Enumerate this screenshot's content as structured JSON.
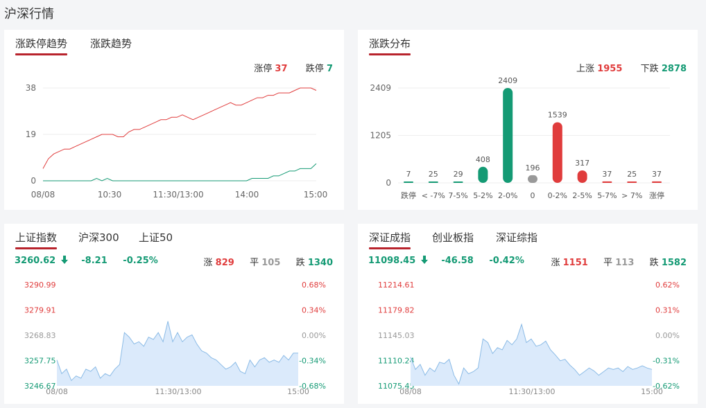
{
  "page_title": "沪深行情",
  "colors": {
    "up": "#e03c3c",
    "down": "#149a74",
    "flat": "#999999",
    "accent": "#b8232c",
    "area_fill": "#dbeafb",
    "area_line": "#8bbbe6"
  },
  "limit_panel": {
    "tabs": [
      "涨跌停趋势",
      "涨跌趋势"
    ],
    "limit_up_label": "涨停",
    "limit_up_value": "37",
    "limit_down_label": "跌停",
    "limit_down_value": "7"
  },
  "dist_panel": {
    "tabs": [
      "涨跌分布"
    ],
    "rise_label": "上涨",
    "rise_value": "1955",
    "fall_label": "下跌",
    "fall_value": "2878"
  },
  "sh_panel": {
    "tabs": [
      "上证指数",
      "沪深300",
      "上证50"
    ],
    "price": "3260.62",
    "arrow_icon": "arrow-down-icon",
    "change": "-8.21",
    "change_pct": "-0.25%",
    "up_label": "涨",
    "up_value": "829",
    "flat_label": "平",
    "flat_value": "105",
    "down_label": "跌",
    "down_value": "1340"
  },
  "sz_panel": {
    "tabs": [
      "深证成指",
      "创业板指",
      "深证综指"
    ],
    "price": "11098.45",
    "arrow_icon": "arrow-down-icon",
    "change": "-46.58",
    "change_pct": "-0.42%",
    "up_label": "涨",
    "up_value": "1151",
    "flat_label": "平",
    "flat_value": "113",
    "down_label": "跌",
    "down_value": "1582"
  },
  "chart_data": [
    {
      "type": "line",
      "x_ticks": [
        "08/08",
        "10:30",
        "11:30/13:00",
        "14:00",
        "15:00"
      ],
      "y_ticks": [
        "0",
        "19",
        "38"
      ],
      "ylim": [
        0,
        38
      ],
      "series": [
        {
          "name": "涨停",
          "color": "#e03c3c",
          "values": [
            5,
            9,
            11,
            12,
            13,
            13,
            14,
            15,
            16,
            17,
            18,
            19,
            19,
            19,
            18,
            18,
            20,
            21,
            21,
            22,
            23,
            24,
            25,
            25,
            26,
            26,
            27,
            26,
            25,
            26,
            27,
            28,
            29,
            30,
            31,
            32,
            31,
            31,
            32,
            33,
            34,
            34,
            35,
            35,
            36,
            36,
            36,
            37,
            38,
            38,
            38,
            37
          ]
        },
        {
          "name": "跌停",
          "color": "#149a74",
          "values": [
            0,
            0,
            0,
            0,
            0,
            0,
            0,
            0,
            0,
            0,
            1,
            0,
            1,
            0,
            0,
            0,
            0,
            0,
            0,
            0,
            0,
            0,
            0,
            0,
            0,
            0,
            0,
            0,
            0,
            0,
            0,
            0,
            0,
            0,
            0,
            0,
            0,
            0,
            0,
            1,
            1,
            1,
            1,
            2,
            2,
            3,
            4,
            4,
            5,
            5,
            5,
            7
          ]
        }
      ]
    },
    {
      "type": "bar",
      "categories": [
        "跌停",
        "< -7%",
        "7-5%",
        "5-2%",
        "2-0%",
        "0",
        "0-2%",
        "2-5%",
        "5-7%",
        "> 7%",
        "涨停"
      ],
      "values": [
        7,
        25,
        29,
        408,
        2409,
        196,
        1539,
        317,
        37,
        25,
        37
      ],
      "bar_colors": [
        "#149a74",
        "#149a74",
        "#149a74",
        "#149a74",
        "#149a74",
        "#999999",
        "#e03c3c",
        "#e03c3c",
        "#e03c3c",
        "#e03c3c",
        "#e03c3c"
      ],
      "y_ticks": [
        "0",
        "1205",
        "2409"
      ],
      "ylim": [
        0,
        2409
      ]
    },
    {
      "type": "area",
      "x_ticks": [
        "08/08",
        "11:30/13:00",
        "15:00"
      ],
      "y_ticks_left": [
        "3290.99",
        "3279.91",
        "3268.83",
        "3257.75",
        "3246.67"
      ],
      "y_ticks_right": [
        "0.68%",
        "0.34%",
        "0.00%",
        "-0.34%",
        "-0.68%"
      ],
      "ylim": [
        3246.67,
        3290.99
      ],
      "values": [
        3258,
        3252,
        3254,
        3249,
        3251,
        3250,
        3254,
        3253,
        3255,
        3250,
        3252,
        3251,
        3254,
        3256,
        3270,
        3268,
        3265,
        3266,
        3264,
        3268,
        3267,
        3270,
        3266,
        3275,
        3266,
        3270,
        3266,
        3268,
        3269,
        3265,
        3262,
        3261,
        3259,
        3258,
        3256,
        3254,
        3255,
        3257,
        3253,
        3252,
        3258,
        3255,
        3258,
        3259,
        3257,
        3258,
        3257,
        3260,
        3258,
        3261,
        3261
      ]
    },
    {
      "type": "area",
      "x_ticks": [
        "08/08",
        "11:30/13:00",
        "15:00"
      ],
      "y_ticks_left": [
        "11214.61",
        "11179.82",
        "11145.03",
        "11110.24",
        "11075.45"
      ],
      "y_ticks_right": [
        "0.62%",
        "0.31%",
        "0.00%",
        "-0.31%",
        "-0.62%"
      ],
      "ylim": [
        11075.45,
        11214.61
      ],
      "values": [
        11115,
        11098,
        11105,
        11090,
        11100,
        11095,
        11108,
        11106,
        11112,
        11090,
        11078,
        11100,
        11092,
        11095,
        11100,
        11140,
        11135,
        11120,
        11128,
        11125,
        11138,
        11132,
        11140,
        11160,
        11135,
        11140,
        11130,
        11132,
        11137,
        11125,
        11118,
        11110,
        11112,
        11104,
        11098,
        11090,
        11095,
        11100,
        11096,
        11090,
        11095,
        11100,
        11098,
        11100,
        11095,
        11102,
        11098,
        11100,
        11103,
        11100,
        11098
      ]
    }
  ]
}
